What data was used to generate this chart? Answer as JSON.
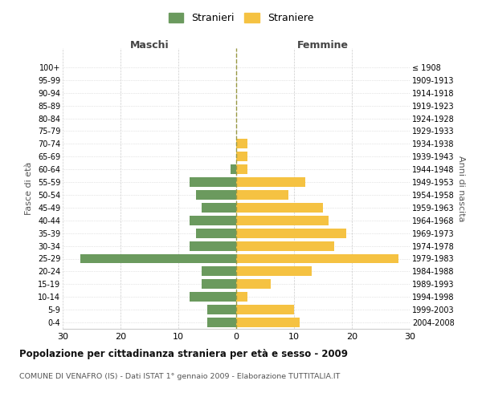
{
  "age_groups": [
    "0-4",
    "5-9",
    "10-14",
    "15-19",
    "20-24",
    "25-29",
    "30-34",
    "35-39",
    "40-44",
    "45-49",
    "50-54",
    "55-59",
    "60-64",
    "65-69",
    "70-74",
    "75-79",
    "80-84",
    "85-89",
    "90-94",
    "95-99",
    "100+"
  ],
  "birth_years": [
    "2004-2008",
    "1999-2003",
    "1994-1998",
    "1989-1993",
    "1984-1988",
    "1979-1983",
    "1974-1978",
    "1969-1973",
    "1964-1968",
    "1959-1963",
    "1954-1958",
    "1949-1953",
    "1944-1948",
    "1939-1943",
    "1934-1938",
    "1929-1933",
    "1924-1928",
    "1919-1923",
    "1914-1918",
    "1909-1913",
    "≤ 1908"
  ],
  "maschi": [
    5,
    5,
    8,
    6,
    6,
    27,
    8,
    7,
    8,
    6,
    7,
    8,
    1,
    0,
    0,
    0,
    0,
    0,
    0,
    0,
    0
  ],
  "femmine": [
    11,
    10,
    2,
    6,
    13,
    28,
    17,
    19,
    16,
    15,
    9,
    12,
    2,
    2,
    2,
    0,
    0,
    0,
    0,
    0,
    0
  ],
  "male_color": "#6b9a5e",
  "female_color": "#f5c242",
  "title": "Popolazione per cittadinanza straniera per età e sesso - 2009",
  "subtitle": "COMUNE DI VENAFRO (IS) - Dati ISTAT 1° gennaio 2009 - Elaborazione TUTTITALIA.IT",
  "ylabel_left": "Fasce di età",
  "ylabel_right": "Anni di nascita",
  "xlabel_left": "Maschi",
  "xlabel_right": "Femmine",
  "legend_male": "Stranieri",
  "legend_female": "Straniere",
  "xlim": 30,
  "background_color": "#ffffff",
  "grid_color": "#cccccc",
  "dashed_line_color": "#999944"
}
